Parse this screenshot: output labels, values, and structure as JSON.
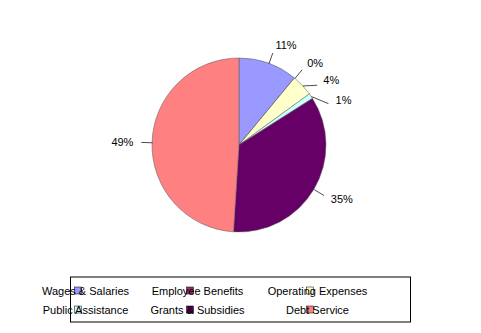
{
  "chart_data": {
    "type": "pie",
    "categories": [
      "Wages & Salaries",
      "Employee Benefits",
      "Operating Expenses",
      "Public Assistance",
      "Grants & Subsidies",
      "Debt Service"
    ],
    "values": [
      11,
      0,
      4,
      1,
      35,
      49
    ],
    "value_labels": [
      "11%",
      "0%",
      "4%",
      "1%",
      "35%",
      "49%"
    ],
    "colors": [
      "#9999ff",
      "#993366",
      "#ffffcc",
      "#ccffff",
      "#660066",
      "#ff8080"
    ],
    "data_labels": true,
    "legend": "bottom"
  }
}
